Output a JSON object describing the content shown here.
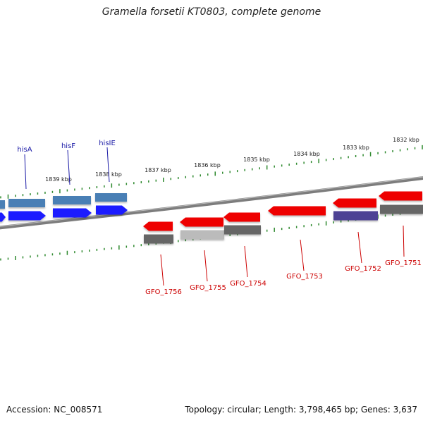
{
  "title": "Gramella forsetii KT0803, complete genome",
  "colors": {
    "background": "#ffffff",
    "backbone": "#7d7d7d",
    "tick": "#2f8a2f",
    "forward_gene": "#1a1aff",
    "forward_feature": "#4a7fb5",
    "reverse_gene": "#ee0000",
    "reverse_feature_dark": "#666666",
    "reverse_feature_light": "#bbbbbb",
    "reverse_feature_purple": "#4e4394",
    "forward_label": "#1a1aa6",
    "reverse_label": "#cc0000"
  },
  "scale_labels": [
    "1839 kbp",
    "1838 kbp",
    "1837 kbp",
    "1836 kbp",
    "1835 kbp",
    "1834 kbp",
    "1833 kbp",
    "1832 kbp"
  ],
  "forward_genes": [
    "hisA",
    "hisF",
    "hisIE"
  ],
  "reverse_genes": [
    "GFO_1756",
    "GFO_1755",
    "GFO_1754",
    "GFO_1753",
    "GFO_1752",
    "GFO_1751"
  ],
  "footer": {
    "accession": "Accession: NC_008571",
    "topology": "Topology: circular; Length: 3,798,465 bp; Genes: 3,637"
  }
}
